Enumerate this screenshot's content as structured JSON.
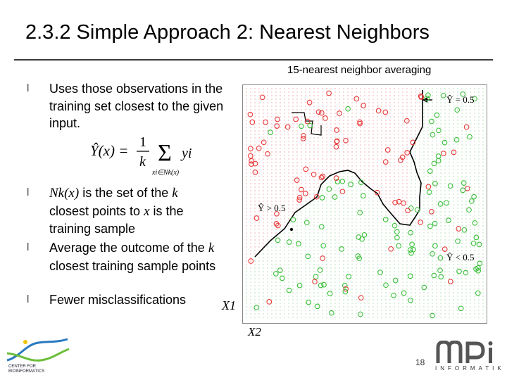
{
  "slide": {
    "title": "2.3.2 Simple Approach 2: Nearest Neighbors",
    "page_number": "18"
  },
  "plot": {
    "caption": "15-nearest neighbor averaging",
    "label_top_right": "Ŷ = 0.5",
    "label_left": "Ŷ > 0.5",
    "label_bottom_right": "Ŷ < 0.5",
    "axis_x1": "X1",
    "axis_x2": "X2",
    "colors": {
      "class_one": "#e83a3a",
      "class_zero": "#3cbf3c",
      "boundary": "#000000"
    }
  },
  "bullets": [
    {
      "marker": "l",
      "text": "Uses those observations in the training set closest to the given input."
    },
    {
      "marker": "l",
      "prefix_math": "Nk(x)",
      "text_a": " is the set of the ",
      "math_k": "k",
      "text_b": " closest points to ",
      "math_x": "x",
      "text_c": " is the training sample"
    },
    {
      "marker": "l",
      "text_a": "Average the outcome of the ",
      "math_k": "k",
      "text_b": " closest training sample points"
    },
    {
      "marker": "l",
      "text": "Fewer misclassifications"
    }
  ],
  "formula": {
    "lhs": "Ŷ(x) =",
    "num": "1",
    "den": "k",
    "sum": "Σ",
    "sub": "xi∈Nk(x)",
    "term": "yi"
  },
  "logos": {
    "left_text": "CENTER FOR BIOINFORMATICS",
    "right_text": "mpi",
    "right_sub": "INFORMATIK"
  }
}
